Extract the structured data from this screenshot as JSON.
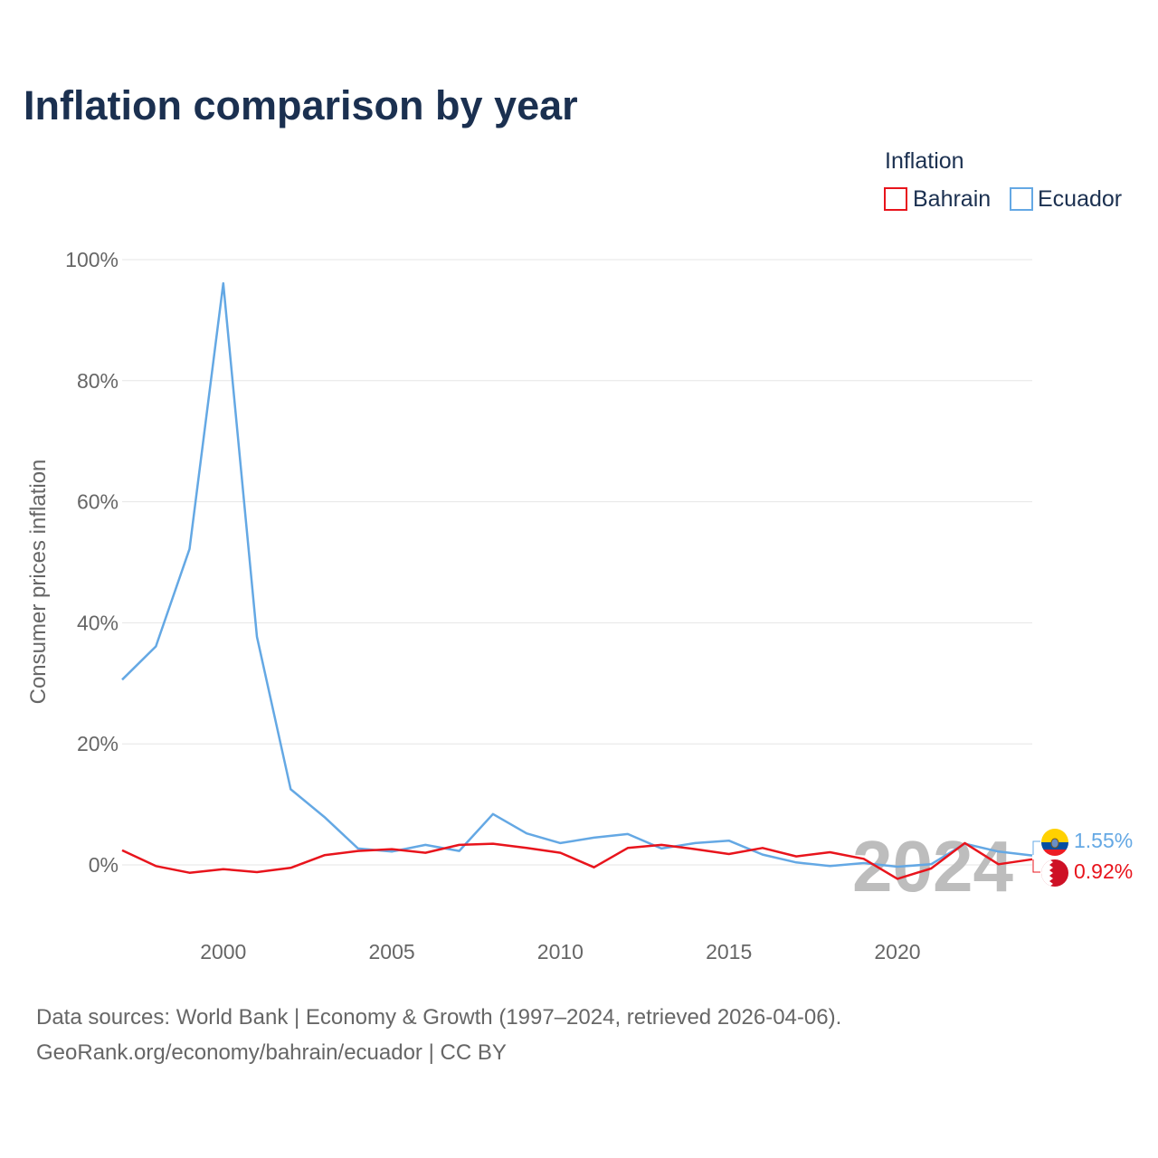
{
  "title": "Inflation comparison by year",
  "legend": {
    "title": "Inflation",
    "items": [
      {
        "label": "Bahrain",
        "color": "#e8141c"
      },
      {
        "label": "Ecuador",
        "color": "#64a8e4"
      }
    ]
  },
  "year_watermark": "2024",
  "footer": {
    "line1": "Data sources: World Bank | Economy & Growth (1997–2024, retrieved 2026-04-06).",
    "line2": "GeoRank.org/economy/bahrain/ecuador | CC BY"
  },
  "end_labels": [
    {
      "series": "Ecuador",
      "text": "1.55%",
      "color": "#64a8e4",
      "flag_icon": "ecuador-flag-icon"
    },
    {
      "series": "Bahrain",
      "text": "0.92%",
      "color": "#e8141c",
      "flag_icon": "bahrain-flag-icon"
    }
  ],
  "chart_data": {
    "type": "line",
    "title": "Inflation comparison by year",
    "xlabel": "",
    "ylabel": "Consumer prices inflation",
    "xlim": [
      1997,
      2024
    ],
    "ylim": [
      -10,
      100
    ],
    "x_ticks": [
      2000,
      2005,
      2010,
      2015,
      2020
    ],
    "y_ticks": [
      0,
      20,
      40,
      60,
      80,
      100
    ],
    "y_tick_labels": [
      "0%",
      "20%",
      "40%",
      "60%",
      "80%",
      "100%"
    ],
    "x": [
      1997,
      1998,
      1999,
      2000,
      2001,
      2002,
      2003,
      2004,
      2005,
      2006,
      2007,
      2008,
      2009,
      2010,
      2011,
      2012,
      2013,
      2014,
      2015,
      2016,
      2017,
      2018,
      2019,
      2020,
      2021,
      2022,
      2023,
      2024
    ],
    "series": [
      {
        "name": "Bahrain",
        "color": "#e8141c",
        "values": [
          2.4,
          -0.2,
          -1.3,
          -0.7,
          -1.2,
          -0.5,
          1.6,
          2.3,
          2.6,
          2.0,
          3.3,
          3.5,
          2.8,
          2.0,
          -0.4,
          2.8,
          3.3,
          2.6,
          1.8,
          2.8,
          1.4,
          2.1,
          1.0,
          -2.3,
          -0.6,
          3.6,
          0.1,
          0.92
        ]
      },
      {
        "name": "Ecuador",
        "color": "#64a8e4",
        "values": [
          30.6,
          36.1,
          52.2,
          96.1,
          37.7,
          12.5,
          7.9,
          2.7,
          2.2,
          3.3,
          2.3,
          8.4,
          5.2,
          3.6,
          4.5,
          5.1,
          2.7,
          3.6,
          4.0,
          1.7,
          0.4,
          -0.2,
          0.3,
          -0.3,
          0.1,
          3.5,
          2.2,
          1.55
        ]
      }
    ],
    "grid": true,
    "legend_position": "top-right"
  }
}
